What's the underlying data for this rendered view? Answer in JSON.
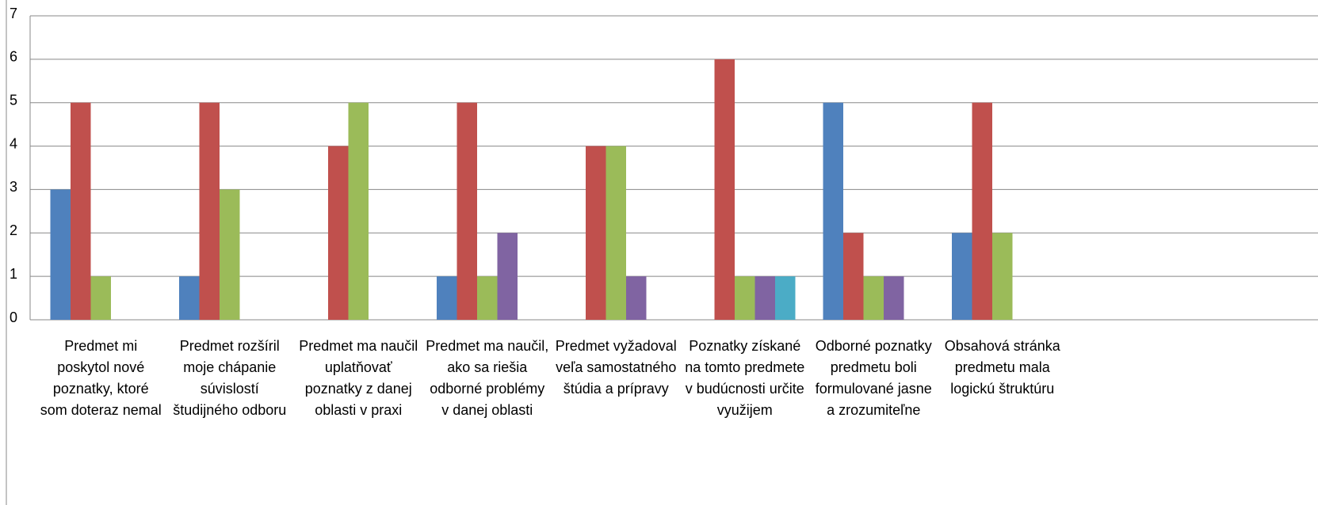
{
  "chart_data": {
    "type": "bar",
    "categories": [
      "Predmet  mi poskytol nové poznatky, ktoré som doteraz nemal",
      "Predmet rozšíril moje chápanie súvislostí študijného odboru",
      "Predmet ma naučil uplatňovať poznatky z danej oblasti v praxi",
      "Predmet ma naučil, ako sa riešia odborné problémy v danej oblasti",
      "Predmet vyžadoval veľa samostatného štúdia a prípravy",
      "Poznatky získané na tomto predmete v budúcnosti určite využijem",
      "Odborné poznatky predmetu boli formulované jasne a zrozumiteľne",
      "Obsahová stránka predmetu mala logickú štruktúru",
      null,
      null
    ],
    "series": [
      {
        "color": "#4f81bd",
        "values": [
          3,
          1,
          0,
          1,
          0,
          0,
          5,
          2,
          null,
          null
        ]
      },
      {
        "color": "#c0504d",
        "values": [
          5,
          5,
          4,
          5,
          4,
          6,
          2,
          5,
          null,
          null
        ]
      },
      {
        "color": "#9bbb59",
        "values": [
          1,
          3,
          5,
          1,
          4,
          1,
          1,
          2,
          null,
          null
        ]
      },
      {
        "color": "#8064a2",
        "values": [
          0,
          0,
          0,
          2,
          1,
          1,
          1,
          0,
          null,
          null
        ]
      },
      {
        "color": "#4bacc6",
        "values": [
          0,
          0,
          0,
          0,
          0,
          1,
          0,
          0,
          null,
          null
        ]
      }
    ],
    "ylim": [
      0,
      7
    ],
    "yticks": [
      0,
      1,
      2,
      3,
      4,
      5,
      6,
      7
    ],
    "grid": true
  }
}
